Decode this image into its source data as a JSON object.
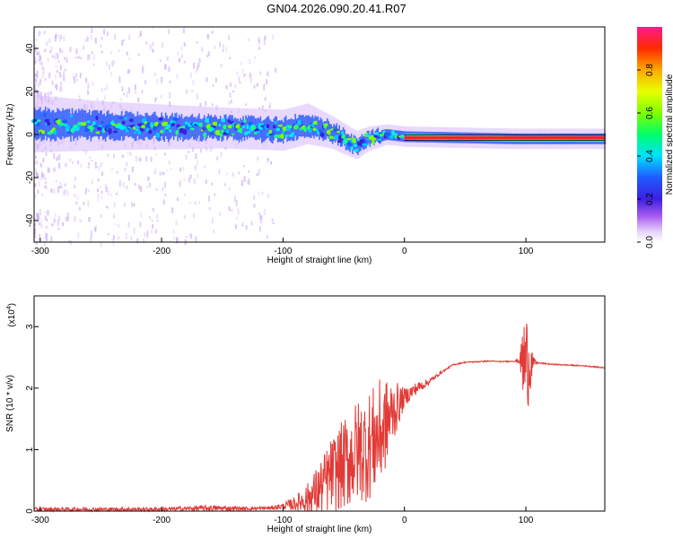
{
  "title": "GN04.2026.090.20.41.R07",
  "colors": {
    "series_line": "#e23a36",
    "spectro_bg": "#ffffff",
    "faint_noise": "#c9a8f5",
    "band_core": "#00e7ff",
    "band_mid": "#2b5cff",
    "band_edge": "#7a2be6",
    "flat_red": "#ff2020"
  },
  "chart_data": [
    {
      "type": "heatmap",
      "name": "spectrogram",
      "xlabel": "Height of straight line (km)",
      "ylabel": "Frequency (Hz)",
      "xlim": [
        -305,
        165
      ],
      "ylim": [
        -50,
        50
      ],
      "x_ticks": [
        -300,
        -200,
        -100,
        0,
        100
      ],
      "x_tick_labels": [
        "-300",
        "-200",
        "-100",
        "0",
        "100"
      ],
      "y_ticks": [
        -40,
        -20,
        0,
        20,
        40
      ],
      "y_tick_labels": [
        "-40",
        "-20",
        "0",
        "20",
        "40"
      ],
      "band": [
        {
          "x": -305,
          "center": 5,
          "halfwidth": 7
        },
        {
          "x": -250,
          "center": 4,
          "halfwidth": 6
        },
        {
          "x": -200,
          "center": 3.5,
          "halfwidth": 5.5
        },
        {
          "x": -150,
          "center": 3,
          "halfwidth": 5
        },
        {
          "x": -100,
          "center": 2,
          "halfwidth": 5
        },
        {
          "x": -80,
          "center": 5,
          "halfwidth": 5
        },
        {
          "x": -60,
          "center": 1,
          "halfwidth": 4
        },
        {
          "x": -40,
          "center": -5,
          "halfwidth": 3.5
        },
        {
          "x": -30,
          "center": -2,
          "halfwidth": 3
        },
        {
          "x": -15,
          "center": 0,
          "halfwidth": 2.5
        },
        {
          "x": 0,
          "center": -1,
          "halfwidth": 2.5
        },
        {
          "x": 90,
          "center": -2,
          "halfwidth": 2.5
        },
        {
          "x": 165,
          "center": -2,
          "halfwidth": 2.5
        }
      ],
      "flat_tone": {
        "x_start": 0,
        "x_end": 165,
        "frequency": -1.5
      }
    },
    {
      "type": "colorbar",
      "name": "amplitude-scale",
      "label": "Normalized spectral amplitude",
      "range": [
        0,
        1
      ],
      "ticks": [
        0.0,
        0.2,
        0.4,
        0.6,
        0.8
      ],
      "tick_labels": [
        "0.0",
        "0.2",
        "0.4",
        "0.6",
        "0.8"
      ]
    },
    {
      "type": "line",
      "name": "snr",
      "xlabel": "Height of straight line (km)",
      "ylabel": "SNR (10 * v/v)",
      "scale_label_base": "(x10",
      "scale_label_exp": "4",
      "scale_label_end": ")",
      "xlim": [
        -305,
        165
      ],
      "ylim": [
        0,
        3.5
      ],
      "x_ticks": [
        -300,
        -200,
        -100,
        0,
        100
      ],
      "x_tick_labels": [
        "-300",
        "-200",
        "-100",
        "0",
        "100"
      ],
      "y_ticks": [
        0,
        1,
        2,
        3
      ],
      "y_tick_labels": [
        "0",
        "1",
        "2",
        "3"
      ],
      "series": [
        {
          "name": "SNR",
          "x": [
            -305,
            -200,
            -160,
            -130,
            -110,
            -100,
            -90,
            -80,
            -70,
            -60,
            -50,
            -40,
            -30,
            -20,
            -10,
            0,
            10,
            20,
            30,
            40,
            50,
            60,
            70,
            80,
            90,
            95,
            98,
            100,
            103,
            106,
            110,
            120,
            130,
            140,
            150,
            165
          ],
          "mean": [
            0.03,
            0.03,
            0.05,
            0.04,
            0.05,
            0.08,
            0.12,
            0.2,
            0.35,
            0.6,
            0.75,
            0.95,
            1.05,
            1.25,
            1.6,
            1.85,
            2.0,
            2.1,
            2.25,
            2.38,
            2.42,
            2.43,
            2.44,
            2.43,
            2.44,
            2.44,
            2.42,
            2.4,
            2.42,
            2.41,
            2.41,
            2.39,
            2.38,
            2.37,
            2.36,
            2.33
          ],
          "amp": [
            0.03,
            0.03,
            0.05,
            0.03,
            0.03,
            0.05,
            0.12,
            0.25,
            0.45,
            0.6,
            0.75,
            0.85,
            0.9,
            0.9,
            0.55,
            0.15,
            0.1,
            0.05,
            0.02,
            0.01,
            0.01,
            0.01,
            0.01,
            0.01,
            0.01,
            0.05,
            0.8,
            0.9,
            0.6,
            0.1,
            0.01,
            0.01,
            0.01,
            0.01,
            0.01,
            0.01
          ]
        }
      ]
    }
  ]
}
